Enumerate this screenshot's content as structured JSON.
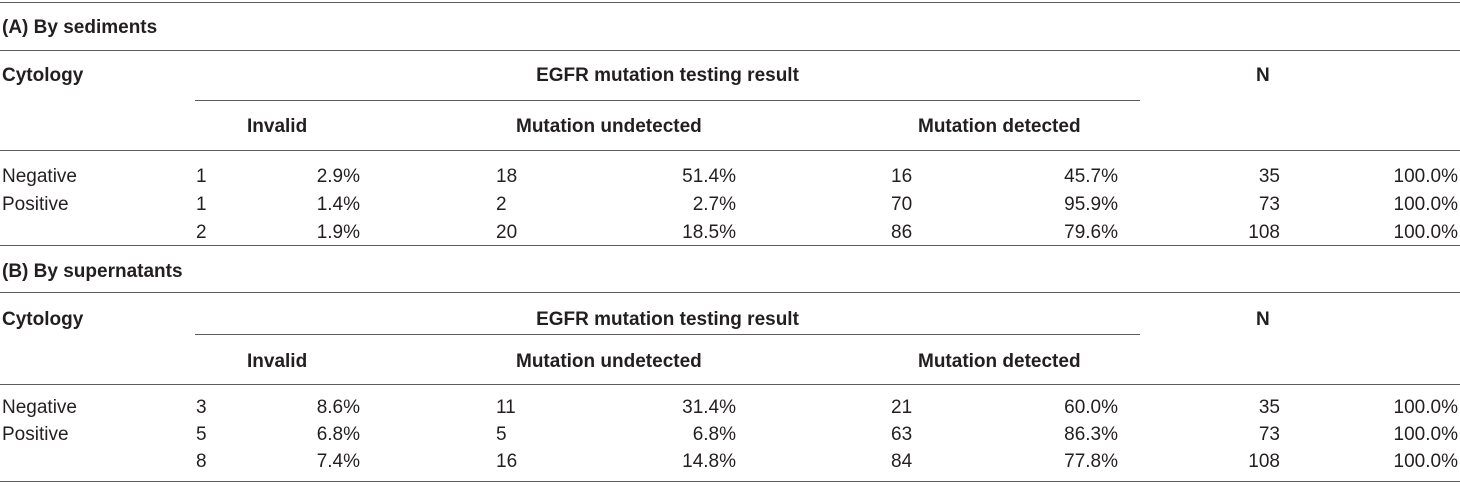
{
  "sections": [
    {
      "title": "(A) By sediments",
      "header": {
        "stub": "Cytology",
        "group": "EGFR mutation testing result",
        "n": "N",
        "sub": [
          "Invalid",
          "Mutation undetected",
          "Mutation detected"
        ]
      },
      "rows": [
        {
          "label": "Negative",
          "inv_n": "1",
          "inv_pct": "2.9%",
          "und_n": "18",
          "und_pct": "51.4%",
          "det_n": "16",
          "det_pct": "45.7%",
          "n": "35",
          "n_pct": "100.0%"
        },
        {
          "label": "Positive",
          "inv_n": "1",
          "inv_pct": "1.4%",
          "und_n": "2",
          "und_pct": "2.7%",
          "det_n": "70",
          "det_pct": "95.9%",
          "n": "73",
          "n_pct": "100.0%"
        },
        {
          "label": "",
          "inv_n": "2",
          "inv_pct": "1.9%",
          "und_n": "20",
          "und_pct": "18.5%",
          "det_n": "86",
          "det_pct": "79.6%",
          "n": "108",
          "n_pct": "100.0%"
        }
      ]
    },
    {
      "title": "(B) By supernatants",
      "header": {
        "stub": "Cytology",
        "group": "EGFR mutation testing result",
        "n": "N",
        "sub": [
          "Invalid",
          "Mutation undetected",
          "Mutation detected"
        ]
      },
      "rows": [
        {
          "label": "Negative",
          "inv_n": "3",
          "inv_pct": "8.6%",
          "und_n": "11",
          "und_pct": "31.4%",
          "det_n": "21",
          "det_pct": "60.0%",
          "n": "35",
          "n_pct": "100.0%"
        },
        {
          "label": "Positive",
          "inv_n": "5",
          "inv_pct": "6.8%",
          "und_n": "5",
          "und_pct": "6.8%",
          "det_n": "63",
          "det_pct": "86.3%",
          "n": "73",
          "n_pct": "100.0%"
        },
        {
          "label": "",
          "inv_n": "8",
          "inv_pct": "7.4%",
          "und_n": "16",
          "und_pct": "14.8%",
          "det_n": "84",
          "det_pct": "77.8%",
          "n": "108",
          "n_pct": "100.0%"
        }
      ]
    }
  ]
}
